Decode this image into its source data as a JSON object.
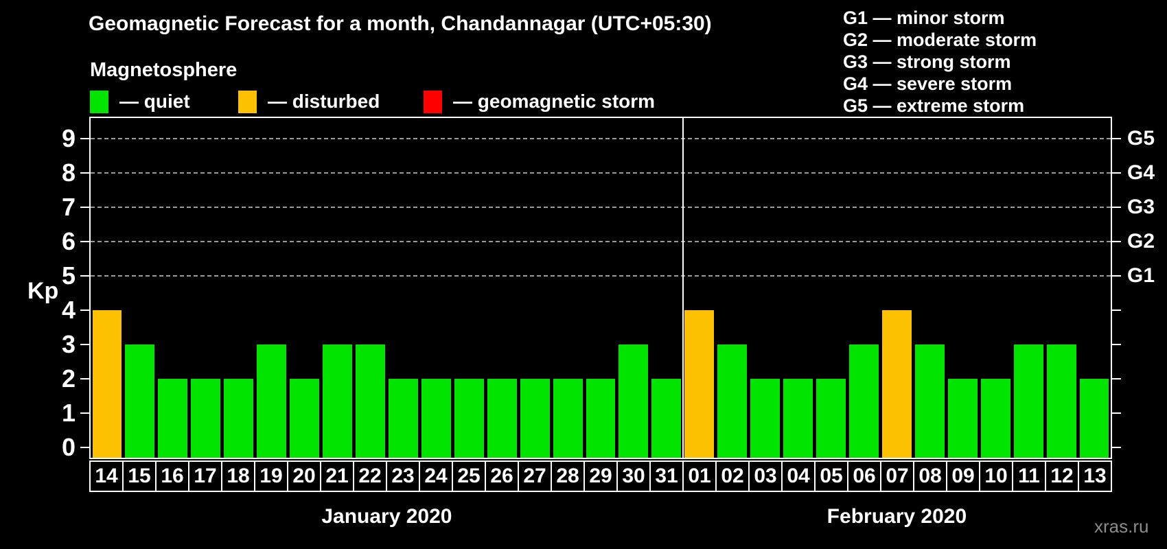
{
  "title": "Geomagnetic Forecast for a month, Chandannagar (UTC+05:30)",
  "magnetosphere": {
    "heading": "Magnetosphere",
    "legend": [
      {
        "status": "quiet",
        "label": "— quiet"
      },
      {
        "status": "disturbed",
        "label": "— disturbed"
      },
      {
        "status": "storm",
        "label": "— geomagnetic storm"
      }
    ]
  },
  "g_scale_legend": [
    "G1 — minor storm",
    "G2 — moderate storm",
    "G3 — strong storm",
    "G4 — severe storm",
    "G5 — extreme storm"
  ],
  "colors": {
    "quiet": "#00e400",
    "disturbed": "#fdc101",
    "storm": "#ff0000",
    "grid": "#9a9a9a",
    "axis": "#ffffff",
    "watermark": "#8b8b8b"
  },
  "watermark": "xras.ru",
  "chart_data": {
    "type": "bar",
    "ylabel": "Kp",
    "ylim": [
      -0.3,
      9.64
    ],
    "y_ticks": [
      0,
      1,
      2,
      3,
      4,
      5,
      6,
      7,
      8,
      9
    ],
    "grid": "horizontal dashed lines at Kp 5-9 (G1-G5 levels)",
    "legend_position": "top",
    "right_axis": [
      {
        "kp": 5,
        "label": "G1"
      },
      {
        "kp": 6,
        "label": "G2"
      },
      {
        "kp": 7,
        "label": "G3"
      },
      {
        "kp": 8,
        "label": "G4"
      },
      {
        "kp": 9,
        "label": "G5"
      }
    ],
    "months": [
      {
        "label": "January 2020",
        "days": [
          "14",
          "15",
          "16",
          "17",
          "18",
          "19",
          "20",
          "21",
          "22",
          "23",
          "24",
          "25",
          "26",
          "27",
          "28",
          "29",
          "30",
          "31"
        ],
        "values": [
          4,
          3,
          2,
          2,
          2,
          3,
          2,
          3,
          3,
          2,
          2,
          2,
          2,
          2,
          2,
          2,
          3,
          2
        ],
        "statuses": [
          "disturbed",
          "quiet",
          "quiet",
          "quiet",
          "quiet",
          "quiet",
          "quiet",
          "quiet",
          "quiet",
          "quiet",
          "quiet",
          "quiet",
          "quiet",
          "quiet",
          "quiet",
          "quiet",
          "quiet",
          "quiet"
        ]
      },
      {
        "label": "February 2020",
        "days": [
          "01",
          "02",
          "03",
          "04",
          "05",
          "06",
          "07",
          "08",
          "09",
          "10",
          "11",
          "12",
          "13"
        ],
        "values": [
          4,
          3,
          2,
          2,
          2,
          3,
          4,
          3,
          2,
          2,
          3,
          3,
          2
        ],
        "statuses": [
          "disturbed",
          "quiet",
          "quiet",
          "quiet",
          "quiet",
          "quiet",
          "disturbed",
          "quiet",
          "quiet",
          "quiet",
          "quiet",
          "quiet",
          "quiet"
        ]
      }
    ]
  }
}
